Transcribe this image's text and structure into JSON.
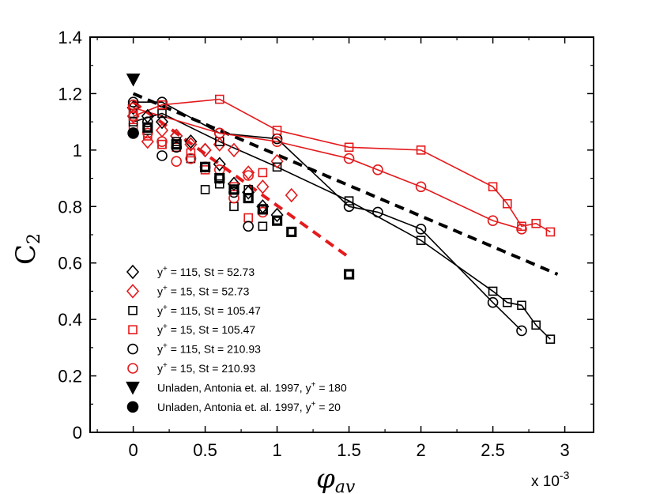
{
  "chart_data": {
    "type": "scatter",
    "title": "",
    "xlabel": "φ",
    "xlabel_sub": "av",
    "ylabel": "C",
    "ylabel_sub": "2",
    "x_scale_label": "x 10",
    "x_scale_exp": "-3",
    "xlim": [
      -0.3,
      3.2
    ],
    "ylim": [
      0,
      1.4
    ],
    "xticks": [
      0,
      0.5,
      1,
      1.5,
      2,
      2.5,
      3
    ],
    "xtick_labels": [
      "0",
      "0.5",
      "1",
      "1.5",
      "2",
      "2.5",
      "3"
    ],
    "yticks": [
      0,
      0.2,
      0.4,
      0.6,
      0.8,
      1.0,
      1.2,
      1.4
    ],
    "ytick_labels": [
      "0",
      "0.2",
      "0.4",
      "0.6",
      "0.8",
      "1",
      "1.2",
      "1.4"
    ],
    "grid": false,
    "legend_position": "bottom-left",
    "colors": {
      "black": "#000000",
      "red": "#e41a1c"
    },
    "series": [
      {
        "id": "s1",
        "name": "y+ = 115, St = 52.73",
        "prefix": "y",
        "sup": "+",
        "suffix": " = 115, St = 52.73",
        "marker": "diamond",
        "color": "#000000",
        "line": false,
        "bold": false,
        "x": [
          0,
          0.1,
          0.2,
          0.3,
          0.4,
          0.5,
          0.6,
          0.7,
          0.8,
          0.9,
          1.0
        ],
        "y": [
          1.15,
          1.12,
          1.1,
          1.05,
          1.03,
          1.0,
          0.95,
          0.88,
          0.85,
          0.8,
          0.77
        ]
      },
      {
        "id": "s2",
        "name": "y+ = 15, St = 52.73",
        "prefix": "y",
        "sup": "+",
        "suffix": " = 15, St = 52.73",
        "marker": "diamond",
        "color": "#e41a1c",
        "line": false,
        "bold": false,
        "x": [
          0,
          0.1,
          0.2,
          0.3,
          0.4,
          0.5,
          0.6,
          0.7,
          0.8,
          0.9,
          1.0,
          1.1
        ],
        "y": [
          1.12,
          1.03,
          1.07,
          1.05,
          1.02,
          1.0,
          1.02,
          1.0,
          0.92,
          0.87,
          0.96,
          0.84
        ]
      },
      {
        "id": "s3",
        "name": "y+ = 115, St = 105.47",
        "prefix": "y",
        "sup": "+",
        "suffix": " = 115, St = 105.47",
        "marker": "square",
        "color": "#000000",
        "line": false,
        "bold": false,
        "x": [
          0,
          0.1,
          0.2,
          0.3,
          0.4,
          0.5,
          0.6,
          0.7,
          0.8,
          0.9
        ],
        "y": [
          1.13,
          1.07,
          1.02,
          1.03,
          0.97,
          0.86,
          0.88,
          0.8,
          0.86,
          0.73
        ]
      },
      {
        "id": "s4",
        "name": "y+ = 15, St = 105.47",
        "prefix": "y",
        "sup": "+",
        "suffix": " = 15, St = 105.47",
        "marker": "square",
        "color": "#e41a1c",
        "line": false,
        "bold": false,
        "x": [
          0,
          0.1,
          0.2,
          0.3,
          0.4,
          0.5,
          0.6,
          0.7,
          0.8,
          0.9
        ],
        "y": [
          1.08,
          1.05,
          1.02,
          1.01,
          0.99,
          0.93,
          0.9,
          0.87,
          0.76,
          0.92
        ]
      },
      {
        "id": "s5",
        "name": "y+ = 115, St = 210.93",
        "prefix": "y",
        "sup": "+",
        "suffix": " = 115, St = 210.93",
        "marker": "circle",
        "color": "#000000",
        "line": false,
        "bold": false,
        "x": [
          0,
          0.1,
          0.2,
          0.3,
          0.4,
          0.5,
          0.6,
          0.7,
          0.8
        ],
        "y": [
          1.16,
          1.1,
          0.98,
          1.01,
          0.97,
          0.94,
          0.9,
          0.85,
          0.73
        ]
      },
      {
        "id": "s6",
        "name": "y+ = 15, St = 210.93",
        "prefix": "y",
        "sup": "+",
        "suffix": " = 15, St = 210.93",
        "marker": "circle",
        "color": "#e41a1c",
        "line": false,
        "bold": false,
        "x": [
          0,
          0.1,
          0.2,
          0.3,
          0.4,
          0.5,
          0.6,
          0.7,
          0.8,
          0.9
        ],
        "y": [
          1.16,
          1.06,
          1.03,
          0.96,
          0.97,
          0.94,
          0.93,
          0.83,
          0.91,
          0.78
        ]
      },
      {
        "id": "s7",
        "name": "bold black squares",
        "marker": "square",
        "color": "#000000",
        "line": false,
        "bold": true,
        "legend": false,
        "x": [
          0.1,
          0.3,
          0.5,
          0.6,
          0.7,
          0.8,
          0.9,
          1.0,
          1.1,
          1.5
        ],
        "y": [
          1.08,
          1.02,
          0.94,
          0.9,
          0.86,
          0.83,
          0.79,
          0.75,
          0.71,
          0.56
        ]
      },
      {
        "id": "l1",
        "name": "black squares line",
        "marker": "square",
        "color": "#000000",
        "line": true,
        "bold": false,
        "legend": false,
        "x": [
          0,
          0.2,
          0.6,
          1.0,
          1.5,
          2.0,
          2.5,
          2.6,
          2.7,
          2.8,
          2.9
        ],
        "y": [
          1.1,
          1.13,
          1.03,
          0.94,
          0.82,
          0.68,
          0.5,
          0.46,
          0.45,
          0.38,
          0.33
        ]
      },
      {
        "id": "l2",
        "name": "black circles line",
        "marker": "circle",
        "color": "#000000",
        "line": true,
        "bold": false,
        "legend": false,
        "x": [
          0,
          0.2,
          0.6,
          1.0,
          1.5,
          1.7,
          2.0,
          2.5,
          2.7
        ],
        "y": [
          1.17,
          1.17,
          1.06,
          1.04,
          0.8,
          0.78,
          0.72,
          0.46,
          0.36
        ]
      },
      {
        "id": "l3",
        "name": "red squares line",
        "marker": "square",
        "color": "#e41a1c",
        "line": true,
        "bold": false,
        "legend": false,
        "x": [
          0,
          0.2,
          0.6,
          1.0,
          1.5,
          2.0,
          2.5,
          2.6,
          2.7,
          2.8,
          2.9
        ],
        "y": [
          1.12,
          1.16,
          1.18,
          1.07,
          1.01,
          1.0,
          0.87,
          0.81,
          0.73,
          0.74,
          0.71
        ]
      },
      {
        "id": "l4",
        "name": "red circles line",
        "marker": "circle",
        "color": "#e41a1c",
        "line": true,
        "bold": false,
        "legend": false,
        "x": [
          0,
          0.6,
          1.0,
          1.5,
          1.7,
          2.0,
          2.5,
          2.7
        ],
        "y": [
          1.15,
          1.06,
          1.03,
          0.97,
          0.93,
          0.87,
          0.75,
          0.72
        ]
      },
      {
        "id": "u1",
        "name": "Unladen, Antonia et. al. 1997, y+ = 180",
        "prefix": "Unladen, Antonia et. al. 1997, y",
        "sup": "+",
        "suffix": " = 180",
        "marker": "triangle-down",
        "color": "#000000",
        "filled": true,
        "line": false,
        "x": [
          0
        ],
        "y": [
          1.25
        ]
      },
      {
        "id": "u2",
        "name": "Unladen, Antonia et. al. 1997, y+ = 20",
        "prefix": "Unladen, Antonia et. al. 1997, y",
        "sup": "+",
        "suffix": " = 20",
        "marker": "circle",
        "color": "#000000",
        "filled": true,
        "line": false,
        "x": [
          0
        ],
        "y": [
          1.06
        ]
      }
    ],
    "fit_lines": [
      {
        "id": "fit-black",
        "color": "#000000",
        "dashed": true,
        "x": [
          0,
          2.95
        ],
        "y": [
          1.2,
          0.56
        ]
      },
      {
        "id": "fit-red",
        "color": "#e41a1c",
        "dashed": true,
        "x": [
          0,
          1.5
        ],
        "y": [
          1.17,
          0.62
        ]
      }
    ],
    "legend": [
      "s1",
      "s2",
      "s3",
      "s4",
      "s5",
      "s6",
      "u1",
      "u2"
    ]
  }
}
